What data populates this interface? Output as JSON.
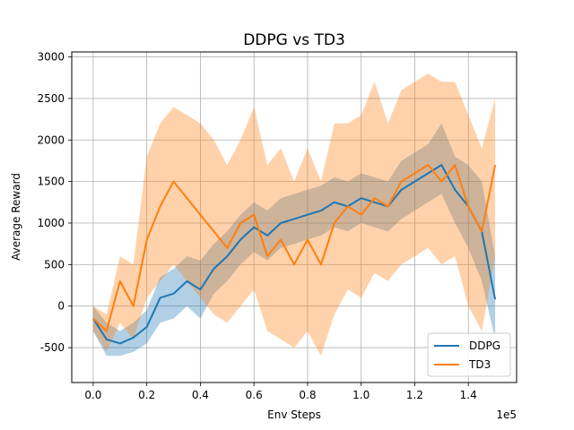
{
  "chart_data": {
    "type": "line",
    "title": "DDPG vs TD3",
    "xlabel": "Env Steps",
    "ylabel": "Average Reward",
    "x_offset_label": "1e5",
    "xlim": [
      -0.08,
      1.58
    ],
    "ylim": [
      -920,
      3060
    ],
    "xticks": [
      0.0,
      0.2,
      0.4,
      0.6,
      0.8,
      1.0,
      1.2,
      1.4
    ],
    "xtick_labels": [
      "0.0",
      "0.2",
      "0.4",
      "0.6",
      "0.8",
      "1.0",
      "1.2",
      "1.4"
    ],
    "yticks": [
      -500,
      0,
      500,
      1000,
      1500,
      2000,
      2500,
      3000
    ],
    "ytick_labels": [
      "-500",
      "0",
      "500",
      "1000",
      "1500",
      "2000",
      "2500",
      "3000"
    ],
    "grid": true,
    "legend_position": "lower-right",
    "x": [
      0.0,
      0.05,
      0.1,
      0.15,
      0.2,
      0.25,
      0.3,
      0.35,
      0.4,
      0.45,
      0.5,
      0.55,
      0.6,
      0.65,
      0.7,
      0.75,
      0.8,
      0.85,
      0.9,
      0.95,
      1.0,
      1.05,
      1.1,
      1.15,
      1.2,
      1.25,
      1.3,
      1.35,
      1.4,
      1.45,
      1.5
    ],
    "series": [
      {
        "name": "DDPG",
        "color": "#1f77b4",
        "values": [
          -150,
          -400,
          -450,
          -380,
          -250,
          100,
          150,
          300,
          200,
          450,
          600,
          800,
          950,
          850,
          1000,
          1050,
          1100,
          1150,
          1250,
          1200,
          1300,
          1250,
          1200,
          1400,
          1500,
          1600,
          1700,
          1400,
          1200,
          900,
          80
        ],
        "band_lower": [
          -300,
          -600,
          -600,
          -550,
          -450,
          -200,
          -150,
          0,
          -150,
          150,
          300,
          500,
          650,
          550,
          700,
          750,
          800,
          850,
          950,
          900,
          1000,
          950,
          900,
          1050,
          1150,
          1250,
          1350,
          1000,
          700,
          300,
          -400
        ],
        "band_upper": [
          0,
          -200,
          -300,
          -200,
          -50,
          350,
          450,
          600,
          550,
          750,
          900,
          1100,
          1250,
          1150,
          1300,
          1350,
          1400,
          1450,
          1550,
          1500,
          1600,
          1550,
          1500,
          1750,
          1850,
          1950,
          2200,
          1800,
          1700,
          1500,
          600
        ]
      },
      {
        "name": "TD3",
        "color": "#ff7f0e",
        "values": [
          -150,
          -300,
          300,
          0,
          800,
          1200,
          1500,
          1300,
          1100,
          900,
          700,
          1000,
          1100,
          600,
          800,
          500,
          800,
          500,
          1000,
          1200,
          1100,
          1300,
          1200,
          1500,
          1600,
          1700,
          1500,
          1700,
          1200,
          900,
          1700
        ],
        "band_lower": [
          -300,
          -550,
          -200,
          -400,
          100,
          300,
          500,
          300,
          100,
          -100,
          -200,
          0,
          200,
          -300,
          -400,
          -500,
          -300,
          -600,
          -100,
          200,
          100,
          400,
          300,
          500,
          600,
          700,
          500,
          600,
          0,
          -300,
          600
        ],
        "band_upper": [
          0,
          -100,
          600,
          500,
          1800,
          2200,
          2400,
          2300,
          2200,
          2000,
          1700,
          2000,
          2400,
          1700,
          1900,
          1500,
          1900,
          1500,
          2200,
          2200,
          2300,
          2700,
          2200,
          2600,
          2700,
          2800,
          2700,
          2700,
          2300,
          1900,
          2500
        ]
      }
    ]
  }
}
